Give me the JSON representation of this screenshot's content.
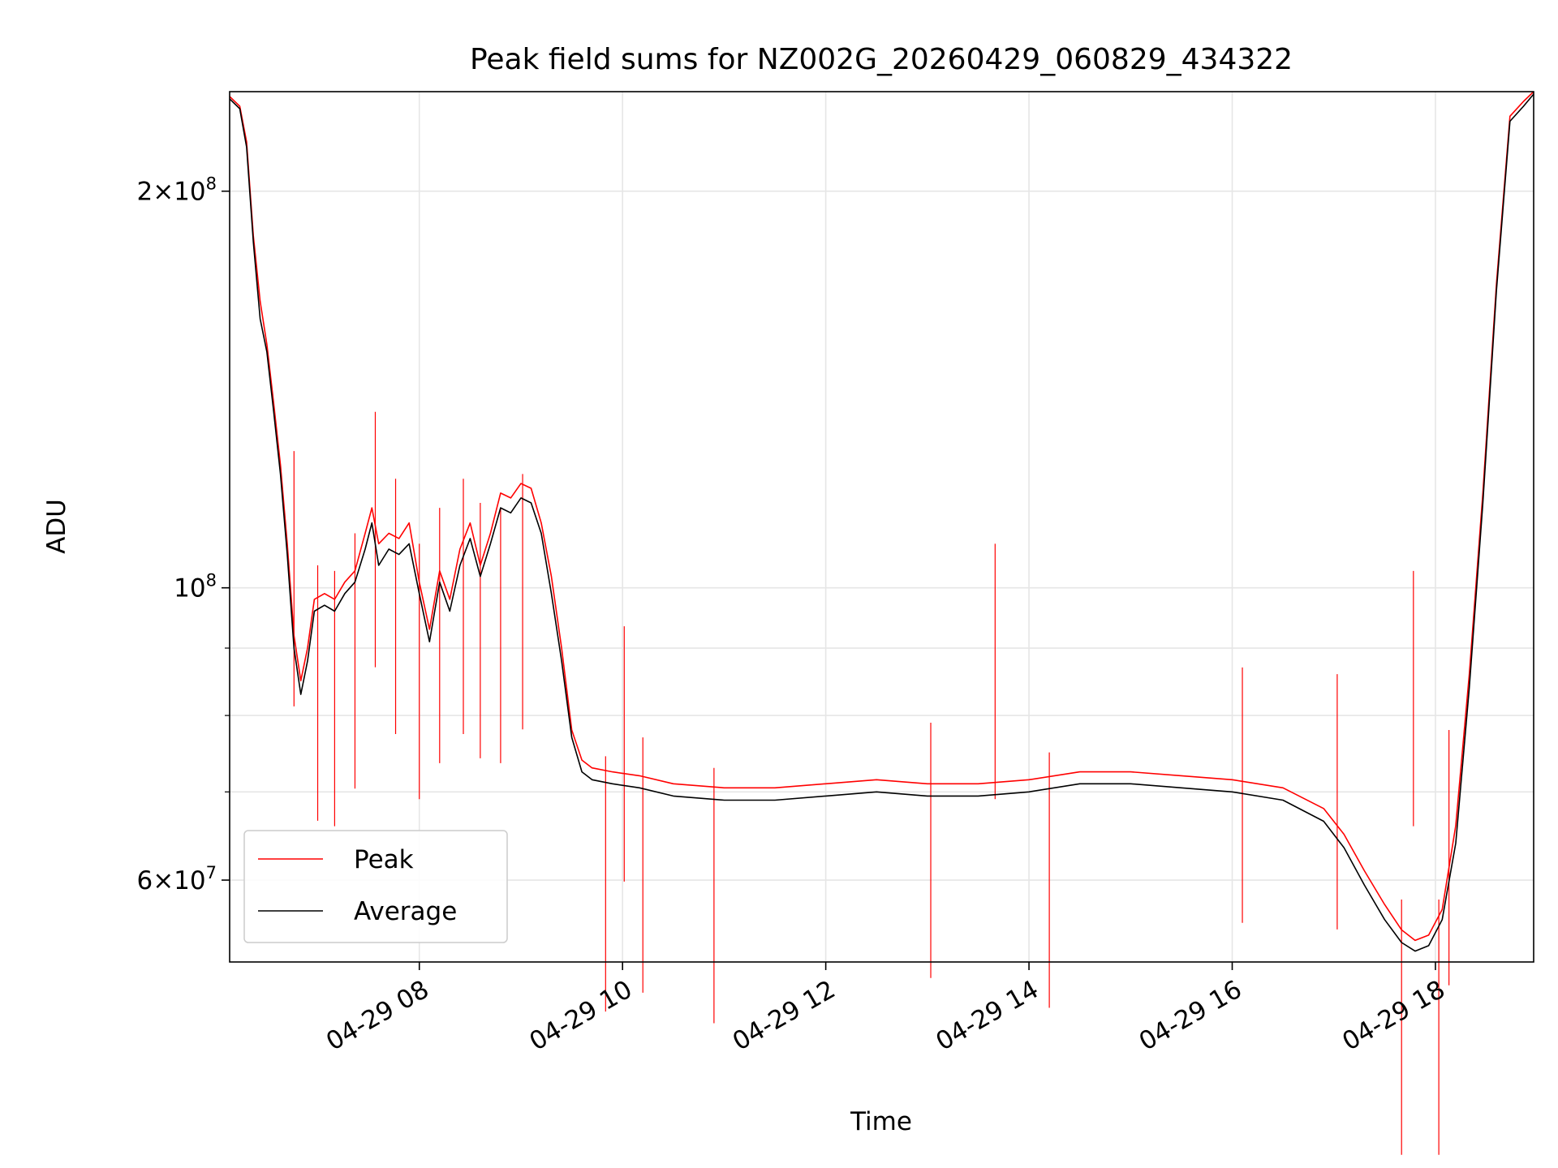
{
  "chart_data": {
    "type": "line",
    "title": "Peak field sums for NZ002G_20260429_060829_434322",
    "xlabel": "Time",
    "ylabel": "ADU",
    "x_axis": "datetime",
    "y_scale": "log",
    "xlim": [
      "2026-04-29 06:08",
      "2026-04-29 18:58"
    ],
    "ylim": [
      52000000,
      238000000
    ],
    "grid": true,
    "legend_position": "lower-left",
    "x_ticks": [
      {
        "t": "2026-04-29 08:00",
        "label": "04-29 08"
      },
      {
        "t": "2026-04-29 10:00",
        "label": "04-29 10"
      },
      {
        "t": "2026-04-29 12:00",
        "label": "04-29 12"
      },
      {
        "t": "2026-04-29 14:00",
        "label": "04-29 14"
      },
      {
        "t": "2026-04-29 16:00",
        "label": "04-29 16"
      },
      {
        "t": "2026-04-29 18:00",
        "label": "04-29 18"
      }
    ],
    "y_major_ticks": [
      {
        "v": 60000000,
        "mantissa": "6",
        "base": "10",
        "exp": "7"
      },
      {
        "v": 100000000,
        "mantissa": "",
        "base": "10",
        "exp": "8"
      },
      {
        "v": 200000000,
        "mantissa": "2",
        "base": "10",
        "exp": "8"
      }
    ],
    "y_minor_gridlines": [
      70000000,
      80000000,
      90000000
    ],
    "series": [
      {
        "name": "Peak",
        "color": "#ff0000",
        "points": [
          [
            "2026-04-29 06:08",
            236000000
          ],
          [
            "2026-04-29 06:14",
            232000000
          ],
          [
            "2026-04-29 06:18",
            218000000
          ],
          [
            "2026-04-29 06:22",
            185000000
          ],
          [
            "2026-04-29 06:26",
            165000000
          ],
          [
            "2026-04-29 06:30",
            153000000
          ],
          [
            "2026-04-29 06:34",
            138000000
          ],
          [
            "2026-04-29 06:38",
            124000000
          ],
          [
            "2026-04-29 06:42",
            108000000
          ],
          [
            "2026-04-29 06:46",
            92000000
          ],
          [
            "2026-04-29 06:50",
            85000000
          ],
          [
            "2026-04-29 06:54",
            90000000
          ],
          [
            "2026-04-29 06:58",
            98000000
          ],
          [
            "2026-04-29 07:04",
            99000000
          ],
          [
            "2026-04-29 07:10",
            98000000
          ],
          [
            "2026-04-29 07:16",
            101000000
          ],
          [
            "2026-04-29 07:22",
            103000000
          ],
          [
            "2026-04-29 07:28",
            110000000
          ],
          [
            "2026-04-29 07:32",
            115000000
          ],
          [
            "2026-04-29 07:36",
            108000000
          ],
          [
            "2026-04-29 07:42",
            110000000
          ],
          [
            "2026-04-29 07:48",
            109000000
          ],
          [
            "2026-04-29 07:54",
            112000000
          ],
          [
            "2026-04-29 08:00",
            101000000
          ],
          [
            "2026-04-29 08:06",
            93000000
          ],
          [
            "2026-04-29 08:12",
            103000000
          ],
          [
            "2026-04-29 08:18",
            98000000
          ],
          [
            "2026-04-29 08:24",
            107000000
          ],
          [
            "2026-04-29 08:30",
            112000000
          ],
          [
            "2026-04-29 08:36",
            104000000
          ],
          [
            "2026-04-29 08:42",
            110000000
          ],
          [
            "2026-04-29 08:48",
            118000000
          ],
          [
            "2026-04-29 08:54",
            117000000
          ],
          [
            "2026-04-29 09:00",
            120000000
          ],
          [
            "2026-04-29 09:06",
            119000000
          ],
          [
            "2026-04-29 09:12",
            112000000
          ],
          [
            "2026-04-29 09:18",
            102000000
          ],
          [
            "2026-04-29 09:24",
            90000000
          ],
          [
            "2026-04-29 09:30",
            78000000
          ],
          [
            "2026-04-29 09:36",
            74000000
          ],
          [
            "2026-04-29 09:42",
            73000000
          ],
          [
            "2026-04-29 09:54",
            72500000
          ],
          [
            "2026-04-29 10:10",
            72000000
          ],
          [
            "2026-04-29 10:30",
            71000000
          ],
          [
            "2026-04-29 11:00",
            70500000
          ],
          [
            "2026-04-29 11:30",
            70500000
          ],
          [
            "2026-04-29 12:00",
            71000000
          ],
          [
            "2026-04-29 12:30",
            71500000
          ],
          [
            "2026-04-29 13:00",
            71000000
          ],
          [
            "2026-04-29 13:30",
            71000000
          ],
          [
            "2026-04-29 14:00",
            71500000
          ],
          [
            "2026-04-29 14:30",
            72500000
          ],
          [
            "2026-04-29 15:00",
            72500000
          ],
          [
            "2026-04-29 15:30",
            72000000
          ],
          [
            "2026-04-29 16:00",
            71500000
          ],
          [
            "2026-04-29 16:30",
            70500000
          ],
          [
            "2026-04-29 16:54",
            68000000
          ],
          [
            "2026-04-29 17:06",
            65000000
          ],
          [
            "2026-04-29 17:18",
            61000000
          ],
          [
            "2026-04-29 17:30",
            57500000
          ],
          [
            "2026-04-29 17:40",
            55000000
          ],
          [
            "2026-04-29 17:48",
            54000000
          ],
          [
            "2026-04-29 17:56",
            54500000
          ],
          [
            "2026-04-29 18:04",
            57000000
          ],
          [
            "2026-04-29 18:12",
            66000000
          ],
          [
            "2026-04-29 18:20",
            86000000
          ],
          [
            "2026-04-29 18:28",
            118000000
          ],
          [
            "2026-04-29 18:36",
            170000000
          ],
          [
            "2026-04-29 18:44",
            228000000
          ],
          [
            "2026-04-29 18:52",
            234000000
          ],
          [
            "2026-04-29 18:58",
            238000000
          ]
        ],
        "spikes": [
          [
            "2026-04-29 06:46",
            127000000
          ],
          [
            "2026-04-29 07:00",
            104000000
          ],
          [
            "2026-04-29 07:10",
            103000000
          ],
          [
            "2026-04-29 07:22",
            110000000
          ],
          [
            "2026-04-29 07:34",
            136000000
          ],
          [
            "2026-04-29 07:46",
            121000000
          ],
          [
            "2026-04-29 08:00",
            108000000
          ],
          [
            "2026-04-29 08:12",
            115000000
          ],
          [
            "2026-04-29 08:26",
            121000000
          ],
          [
            "2026-04-29 08:36",
            116000000
          ],
          [
            "2026-04-29 08:48",
            115000000
          ],
          [
            "2026-04-29 09:01",
            122000000
          ],
          [
            "2026-04-29 09:50",
            74500000
          ],
          [
            "2026-04-29 10:01",
            93500000
          ],
          [
            "2026-04-29 10:12",
            77000000
          ],
          [
            "2026-04-29 10:54",
            73000000
          ],
          [
            "2026-04-29 13:02",
            79000000
          ],
          [
            "2026-04-29 13:40",
            108000000
          ],
          [
            "2026-04-29 14:12",
            75000000
          ],
          [
            "2026-04-29 16:06",
            87000000
          ],
          [
            "2026-04-29 17:02",
            86000000
          ],
          [
            "2026-04-29 17:40",
            58000000
          ],
          [
            "2026-04-29 17:47",
            103000000
          ],
          [
            "2026-04-29 18:02",
            58000000
          ],
          [
            "2026-04-29 18:08",
            78000000
          ]
        ]
      },
      {
        "name": "Average",
        "color": "#000000",
        "points": [
          [
            "2026-04-29 06:08",
            235000000
          ],
          [
            "2026-04-29 06:14",
            231000000
          ],
          [
            "2026-04-29 06:18",
            216000000
          ],
          [
            "2026-04-29 06:22",
            183000000
          ],
          [
            "2026-04-29 06:26",
            160000000
          ],
          [
            "2026-04-29 06:30",
            151000000
          ],
          [
            "2026-04-29 06:34",
            136000000
          ],
          [
            "2026-04-29 06:38",
            122000000
          ],
          [
            "2026-04-29 06:42",
            106000000
          ],
          [
            "2026-04-29 06:46",
            90000000
          ],
          [
            "2026-04-29 06:50",
            83000000
          ],
          [
            "2026-04-29 06:54",
            88000000
          ],
          [
            "2026-04-29 06:58",
            96000000
          ],
          [
            "2026-04-29 07:04",
            97000000
          ],
          [
            "2026-04-29 07:10",
            96000000
          ],
          [
            "2026-04-29 07:16",
            99000000
          ],
          [
            "2026-04-29 07:22",
            101000000
          ],
          [
            "2026-04-29 07:28",
            107000000
          ],
          [
            "2026-04-29 07:32",
            112000000
          ],
          [
            "2026-04-29 07:36",
            104000000
          ],
          [
            "2026-04-29 07:42",
            107000000
          ],
          [
            "2026-04-29 07:48",
            106000000
          ],
          [
            "2026-04-29 07:54",
            108000000
          ],
          [
            "2026-04-29 08:00",
            99000000
          ],
          [
            "2026-04-29 08:06",
            91000000
          ],
          [
            "2026-04-29 08:12",
            101000000
          ],
          [
            "2026-04-29 08:18",
            96000000
          ],
          [
            "2026-04-29 08:24",
            104000000
          ],
          [
            "2026-04-29 08:30",
            109000000
          ],
          [
            "2026-04-29 08:36",
            102000000
          ],
          [
            "2026-04-29 08:42",
            108000000
          ],
          [
            "2026-04-29 08:48",
            115000000
          ],
          [
            "2026-04-29 08:54",
            114000000
          ],
          [
            "2026-04-29 09:00",
            117000000
          ],
          [
            "2026-04-29 09:06",
            116000000
          ],
          [
            "2026-04-29 09:12",
            110000000
          ],
          [
            "2026-04-29 09:18",
            99000000
          ],
          [
            "2026-04-29 09:24",
            88000000
          ],
          [
            "2026-04-29 09:30",
            77000000
          ],
          [
            "2026-04-29 09:36",
            72500000
          ],
          [
            "2026-04-29 09:42",
            71500000
          ],
          [
            "2026-04-29 09:54",
            71000000
          ],
          [
            "2026-04-29 10:10",
            70500000
          ],
          [
            "2026-04-29 10:30",
            69500000
          ],
          [
            "2026-04-29 11:00",
            69000000
          ],
          [
            "2026-04-29 11:30",
            69000000
          ],
          [
            "2026-04-29 12:00",
            69500000
          ],
          [
            "2026-04-29 12:30",
            70000000
          ],
          [
            "2026-04-29 13:00",
            69500000
          ],
          [
            "2026-04-29 13:30",
            69500000
          ],
          [
            "2026-04-29 14:00",
            70000000
          ],
          [
            "2026-04-29 14:30",
            71000000
          ],
          [
            "2026-04-29 15:00",
            71000000
          ],
          [
            "2026-04-29 15:30",
            70500000
          ],
          [
            "2026-04-29 16:00",
            70000000
          ],
          [
            "2026-04-29 16:30",
            69000000
          ],
          [
            "2026-04-29 16:54",
            66500000
          ],
          [
            "2026-04-29 17:06",
            63500000
          ],
          [
            "2026-04-29 17:18",
            59500000
          ],
          [
            "2026-04-29 17:30",
            56000000
          ],
          [
            "2026-04-29 17:40",
            53800000
          ],
          [
            "2026-04-29 17:48",
            53000000
          ],
          [
            "2026-04-29 17:56",
            53500000
          ],
          [
            "2026-04-29 18:04",
            56000000
          ],
          [
            "2026-04-29 18:12",
            64000000
          ],
          [
            "2026-04-29 18:20",
            84000000
          ],
          [
            "2026-04-29 18:28",
            116000000
          ],
          [
            "2026-04-29 18:36",
            168000000
          ],
          [
            "2026-04-29 18:44",
            226000000
          ],
          [
            "2026-04-29 18:52",
            232000000
          ],
          [
            "2026-04-29 18:58",
            237000000
          ]
        ]
      }
    ]
  }
}
